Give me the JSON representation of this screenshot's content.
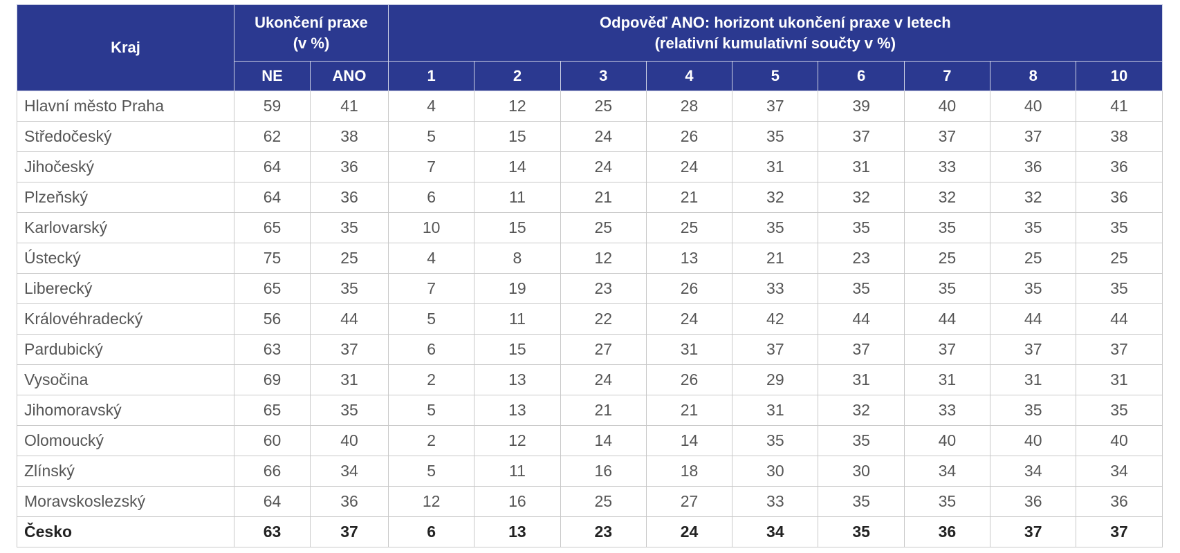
{
  "table": {
    "header": {
      "region": "Kraj",
      "group1": [
        "Ukončení praxe",
        "(v %)"
      ],
      "group2": [
        "Odpověď ANO: horizont ukončení praxe v letech",
        "(relativní kumulativní součty v %)"
      ],
      "columns": [
        "NE",
        "ANO",
        "1",
        "2",
        "3",
        "4",
        "5",
        "6",
        "7",
        "8",
        "10"
      ]
    },
    "rows": [
      [
        "Hlavní město Praha",
        59,
        41,
        4,
        12,
        25,
        28,
        37,
        39,
        40,
        40,
        41
      ],
      [
        "Středočeský",
        62,
        38,
        5,
        15,
        24,
        26,
        35,
        37,
        37,
        37,
        38
      ],
      [
        "Jihočeský",
        64,
        36,
        7,
        14,
        24,
        24,
        31,
        31,
        33,
        36,
        36
      ],
      [
        "Plzeňský",
        64,
        36,
        6,
        11,
        21,
        21,
        32,
        32,
        32,
        32,
        36
      ],
      [
        "Karlovarský",
        65,
        35,
        10,
        15,
        25,
        25,
        35,
        35,
        35,
        35,
        35
      ],
      [
        "Ústecký",
        75,
        25,
        4,
        8,
        12,
        13,
        21,
        23,
        25,
        25,
        25
      ],
      [
        "Liberecký",
        65,
        35,
        7,
        19,
        23,
        26,
        33,
        35,
        35,
        35,
        35
      ],
      [
        "Královéhradecký",
        56,
        44,
        5,
        11,
        22,
        24,
        42,
        44,
        44,
        44,
        44
      ],
      [
        "Pardubický",
        63,
        37,
        6,
        15,
        27,
        31,
        37,
        37,
        37,
        37,
        37
      ],
      [
        "Vysočina",
        69,
        31,
        2,
        13,
        24,
        26,
        29,
        31,
        31,
        31,
        31
      ],
      [
        "Jihomoravský",
        65,
        35,
        5,
        13,
        21,
        21,
        31,
        32,
        33,
        35,
        35
      ],
      [
        "Olomoucký",
        60,
        40,
        2,
        12,
        14,
        14,
        35,
        35,
        40,
        40,
        40
      ],
      [
        "Zlínský",
        66,
        34,
        5,
        11,
        16,
        18,
        30,
        30,
        34,
        34,
        34
      ],
      [
        "Moravskoslezský",
        64,
        36,
        12,
        16,
        25,
        27,
        33,
        35,
        35,
        36,
        36
      ]
    ],
    "total": [
      "Česko",
      63,
      37,
      6,
      13,
      23,
      24,
      34,
      35,
      36,
      37,
      37
    ]
  }
}
